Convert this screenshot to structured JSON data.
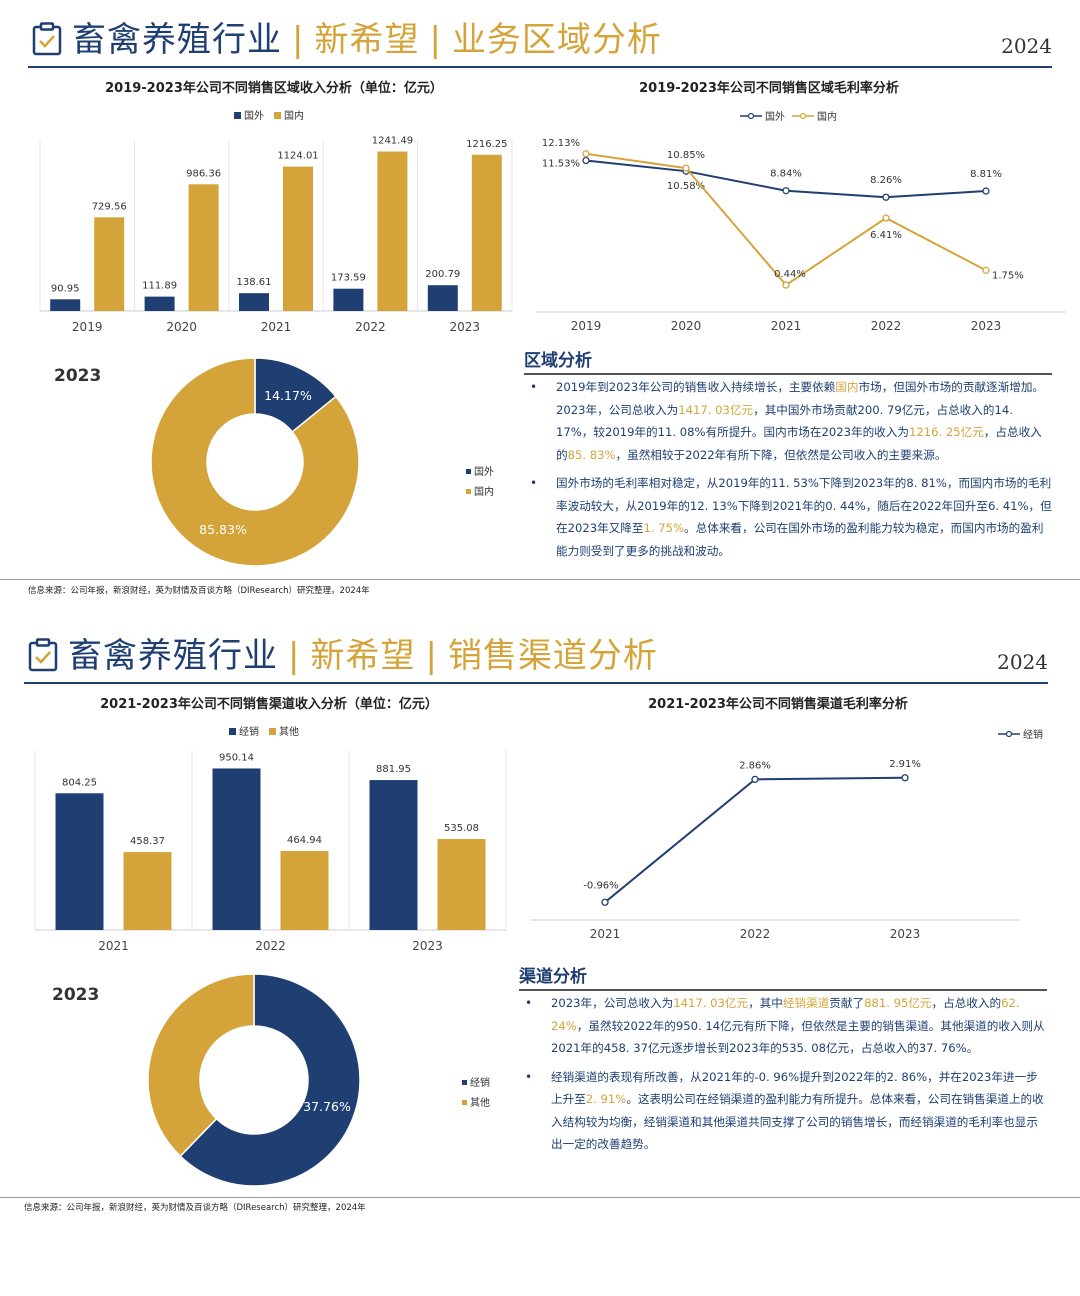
{
  "slide1": {
    "header": {
      "t1": "畜禽养殖行业",
      "sep": "|",
      "t2": "新希望",
      "t3": "业务区域分析",
      "year": "2024"
    },
    "bar_title": "2019-2023年公司不同销售区域收入分析（单位：亿元）",
    "line_title": "2019-2023年公司不同销售区域毛利率分析",
    "donut_year": "2023",
    "section_title": "区域分析",
    "bullets": [
      [
        "2019年到2023年公司的销售收入持续增长，主要依赖",
        "国内",
        "市场，但国外市场的贡献逐渐增加。2023年，公司总收入为",
        "1417. 03亿元",
        "，其中国外市场贡献200. 79亿元，占总收入的14. 17%，较2019年的11. 08%有所提升。国内市场在2023年的收入为",
        "1216. 25亿元",
        "，占总收入的",
        "85. 83%",
        "，虽然相较于2022年有所下降，但依然是公司收入的主要来源。"
      ],
      [
        "国外市场的毛利率相对稳定，从2019年的11. 53%下降到2023年的8. 81%，而国内市场的毛利率波动较大，从2019年的12. 13%下降到2021年的0. 44%，随后在2022年回升至6. 41%，但在2023年又降至",
        "1. 75%",
        "。总体来看，公司在国外市场的盈利能力较为稳定，而国内市场的盈利能力则受到了更多的挑战和波动。"
      ]
    ],
    "source": "信息来源：公司年报，新浪财经，英为财情及百谈方略（DIResearch）研究整理，2024年"
  },
  "slide2": {
    "header": {
      "t1": "畜禽养殖行业",
      "sep": "|",
      "t2": "新希望",
      "t3": "销售渠道分析",
      "year": "2024"
    },
    "bar_title": "2021-2023年公司不同销售渠道收入分析（单位：亿元）",
    "line_title": "2021-2023年公司不同销售渠道毛利率分析",
    "donut_year": "2023",
    "section_title": "渠道分析",
    "bullets": [
      [
        "2023年，公司总收入为",
        "1417. 03亿元",
        "，其中",
        "经销渠道",
        "贡献了",
        "881. 95亿元",
        "，占总收入的",
        "62. 24%",
        "，虽然较2022年的950. 14亿元有所下降，但依然是主要的销售渠道。其他渠道的收入则从2021年的458. 37亿元逐步增长到2023年的535. 08亿元，占总收入的37. 76%。"
      ],
      [
        "经销渠道的表现有所改善，从2021年的-0. 96%提升到2022年的2. 86%，并在2023年进一步上升至",
        "2. 91%",
        "。这表明公司在经销渠道的盈利能力有所提升。总体来看，公司在销售渠道上的收入结构较为均衡，经销渠道和其他渠道共同支撑了公司的销售增长，而经销渠道的毛利率也显示出一定的改善趋势。"
      ]
    ],
    "source": "信息来源：公司年报，新浪财经，英为财情及百谈方略（DIResearch）研究整理，2024年"
  },
  "colors": {
    "navy": "#1f3f73",
    "gold": "#d4a43a"
  },
  "chart_data": [
    {
      "id": "region_revenue",
      "type": "bar",
      "title": "2019-2023年公司不同销售区域收入分析（单位：亿元）",
      "categories": [
        "2019",
        "2020",
        "2021",
        "2022",
        "2023"
      ],
      "series": [
        {
          "name": "国外",
          "values": [
            90.95,
            111.89,
            138.61,
            173.59,
            200.79
          ],
          "color": "#1f3f73"
        },
        {
          "name": "国内",
          "values": [
            729.56,
            986.36,
            1124.01,
            1241.49,
            1216.25
          ],
          "color": "#d4a43a"
        }
      ],
      "legend": "top",
      "ylim": [
        0,
        1300
      ]
    },
    {
      "id": "region_margin",
      "type": "line",
      "title": "2019-2023年公司不同销售区域毛利率分析",
      "categories": [
        "2019",
        "2020",
        "2021",
        "2022",
        "2023"
      ],
      "series": [
        {
          "name": "国外",
          "values": [
            11.53,
            10.58,
            8.84,
            8.26,
            8.81
          ],
          "labels": [
            "11.53%",
            "10.58%",
            "8.84%",
            "8.26%",
            "8.81%"
          ],
          "color": "#1f3f73"
        },
        {
          "name": "国内",
          "values": [
            12.13,
            10.85,
            0.44,
            6.41,
            1.75
          ],
          "labels": [
            "12.13%",
            "10.85%",
            "0.44%",
            "6.41%",
            "1.75%"
          ],
          "color": "#d4a43a"
        }
      ],
      "legend": "top",
      "ylim": [
        0,
        13
      ]
    },
    {
      "id": "region_share_2023",
      "type": "pie",
      "title": "2023",
      "slices": [
        {
          "name": "国外",
          "value": 14.17,
          "label": "14.17%",
          "color": "#1f3f73"
        },
        {
          "name": "国内",
          "value": 85.83,
          "label": "85.83%",
          "color": "#d4a43a"
        }
      ],
      "legend": "right"
    },
    {
      "id": "channel_revenue",
      "type": "bar",
      "title": "2021-2023年公司不同销售渠道收入分析（单位：亿元）",
      "categories": [
        "2021",
        "2022",
        "2023"
      ],
      "series": [
        {
          "name": "经销",
          "values": [
            804.25,
            950.14,
            881.95
          ],
          "color": "#1f3f73"
        },
        {
          "name": "其他",
          "values": [
            458.37,
            464.94,
            535.08
          ],
          "color": "#d4a43a"
        }
      ],
      "legend": "top",
      "ylim": [
        0,
        1000
      ]
    },
    {
      "id": "channel_margin",
      "type": "line",
      "title": "2021-2023年公司不同销售渠道毛利率分析",
      "categories": [
        "2021",
        "2022",
        "2023"
      ],
      "series": [
        {
          "name": "经销",
          "values": [
            -0.96,
            2.86,
            2.91
          ],
          "labels": [
            "-0.96%",
            "2.86%",
            "2.91%"
          ],
          "color": "#1f3f73"
        }
      ],
      "legend": "top-right",
      "ylim": [
        -1.2,
        3.4
      ]
    },
    {
      "id": "channel_share_2023",
      "type": "pie",
      "title": "2023",
      "slices": [
        {
          "name": "经销",
          "value": 62.24,
          "label": "62.24%",
          "color": "#1f3f73"
        },
        {
          "name": "其他",
          "value": 37.76,
          "label": "37.76%",
          "color": "#d4a43a"
        }
      ],
      "legend": "right"
    }
  ]
}
